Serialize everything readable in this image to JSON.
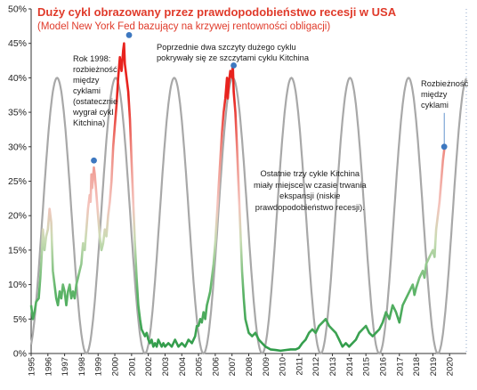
{
  "chart_data": {
    "type": "line",
    "title": "Duży cykl obrazowany przez prawdopodobieństwo recesji w USA",
    "subtitle": "(Model New York Fed bazujący na krzywej rentowności obligacji)",
    "xlabel": "",
    "ylabel": "",
    "xlim": [
      1995,
      2021
    ],
    "ylim": [
      0,
      50
    ],
    "y_tick_labels": [
      "0%",
      "5%",
      "10%",
      "15%",
      "20%",
      "25%",
      "30%",
      "35%",
      "40%",
      "45%",
      "50%"
    ],
    "x_tick_labels": [
      "1995",
      "1996",
      "1997",
      "1998",
      "1999",
      "2000",
      "2001",
      "2002",
      "2003",
      "2004",
      "2005",
      "2006",
      "2007",
      "2008",
      "2009",
      "2010",
      "2011",
      "2012",
      "2013",
      "2014",
      "2015",
      "2016",
      "2017",
      "2018",
      "2019",
      "2020"
    ],
    "grid": false,
    "colors": {
      "high": "#e8231e",
      "mid": "#f2a7a1",
      "low": "#2d9a48",
      "cycle": "#a8a8a8",
      "marker": "#3d78c0"
    },
    "series": [
      {
        "role": "recession-probability",
        "points": [
          [
            1995.0,
            7
          ],
          [
            1995.1,
            5
          ],
          [
            1995.2,
            6
          ],
          [
            1995.3,
            7.5
          ],
          [
            1995.45,
            8
          ],
          [
            1995.55,
            11
          ],
          [
            1995.65,
            15
          ],
          [
            1995.7,
            18
          ],
          [
            1995.8,
            15
          ],
          [
            1995.9,
            17
          ],
          [
            1996.0,
            18
          ],
          [
            1996.1,
            21
          ],
          [
            1996.2,
            19
          ],
          [
            1996.3,
            12
          ],
          [
            1996.4,
            10
          ],
          [
            1996.5,
            8
          ],
          [
            1996.6,
            7
          ],
          [
            1996.7,
            9
          ],
          [
            1996.8,
            8
          ],
          [
            1996.9,
            10
          ],
          [
            1997.0,
            9
          ],
          [
            1997.1,
            7
          ],
          [
            1997.2,
            9
          ],
          [
            1997.3,
            10
          ],
          [
            1997.4,
            8
          ],
          [
            1997.5,
            9
          ],
          [
            1997.6,
            8
          ],
          [
            1997.7,
            10
          ],
          [
            1997.8,
            11
          ],
          [
            1997.9,
            12
          ],
          [
            1998.0,
            13
          ],
          [
            1998.1,
            16
          ],
          [
            1998.2,
            15
          ],
          [
            1998.3,
            18
          ],
          [
            1998.4,
            21
          ],
          [
            1998.5,
            23
          ],
          [
            1998.55,
            22
          ],
          [
            1998.6,
            26
          ],
          [
            1998.65,
            24
          ],
          [
            1998.75,
            27
          ],
          [
            1998.8,
            26
          ],
          [
            1998.9,
            23
          ],
          [
            1999.0,
            20
          ],
          [
            1999.1,
            17
          ],
          [
            1999.2,
            15
          ],
          [
            1999.3,
            16
          ],
          [
            1999.4,
            18
          ],
          [
            1999.5,
            17
          ],
          [
            1999.6,
            20
          ],
          [
            1999.7,
            22
          ],
          [
            1999.8,
            25
          ],
          [
            1999.9,
            30
          ],
          [
            2000.0,
            33
          ],
          [
            2000.1,
            36
          ],
          [
            2000.2,
            40
          ],
          [
            2000.3,
            43
          ],
          [
            2000.4,
            41
          ],
          [
            2000.5,
            44
          ],
          [
            2000.55,
            45
          ],
          [
            2000.6,
            42
          ],
          [
            2000.7,
            40
          ],
          [
            2000.8,
            38
          ],
          [
            2000.9,
            34
          ],
          [
            2001.0,
            28
          ],
          [
            2001.1,
            22
          ],
          [
            2001.2,
            16
          ],
          [
            2001.3,
            11
          ],
          [
            2001.4,
            7
          ],
          [
            2001.5,
            5
          ],
          [
            2001.6,
            3.5
          ],
          [
            2001.7,
            3
          ],
          [
            2001.8,
            2.5
          ],
          [
            2001.9,
            3
          ],
          [
            2002.0,
            2
          ],
          [
            2002.1,
            1.5
          ],
          [
            2002.2,
            2
          ],
          [
            2002.3,
            1
          ],
          [
            2002.4,
            1.5
          ],
          [
            2002.5,
            1
          ],
          [
            2002.6,
            2
          ],
          [
            2002.7,
            1.5
          ],
          [
            2002.8,
            1
          ],
          [
            2002.9,
            1.5
          ],
          [
            2003.0,
            1
          ],
          [
            2003.2,
            1.5
          ],
          [
            2003.4,
            1
          ],
          [
            2003.6,
            2
          ],
          [
            2003.8,
            1
          ],
          [
            2004.0,
            1.5
          ],
          [
            2004.2,
            1
          ],
          [
            2004.4,
            2
          ],
          [
            2004.6,
            1.5
          ],
          [
            2004.8,
            2.5
          ],
          [
            2004.9,
            4
          ],
          [
            2005.0,
            4
          ],
          [
            2005.1,
            5
          ],
          [
            2005.2,
            4.5
          ],
          [
            2005.3,
            6
          ],
          [
            2005.4,
            5
          ],
          [
            2005.5,
            7
          ],
          [
            2005.6,
            8
          ],
          [
            2005.7,
            9
          ],
          [
            2005.8,
            11
          ],
          [
            2005.9,
            13
          ],
          [
            2006.0,
            16
          ],
          [
            2006.1,
            20
          ],
          [
            2006.2,
            24
          ],
          [
            2006.3,
            28
          ],
          [
            2006.4,
            32
          ],
          [
            2006.5,
            35
          ],
          [
            2006.6,
            37
          ],
          [
            2006.7,
            40
          ],
          [
            2006.75,
            37
          ],
          [
            2006.8,
            39
          ],
          [
            2006.9,
            41
          ],
          [
            2007.0,
            40
          ],
          [
            2007.05,
            42
          ],
          [
            2007.1,
            38
          ],
          [
            2007.2,
            35
          ],
          [
            2007.3,
            30
          ],
          [
            2007.4,
            24
          ],
          [
            2007.5,
            18
          ],
          [
            2007.6,
            12
          ],
          [
            2007.7,
            8
          ],
          [
            2007.8,
            5
          ],
          [
            2007.9,
            4
          ],
          [
            2008.0,
            3
          ],
          [
            2008.2,
            2.5
          ],
          [
            2008.4,
            3
          ],
          [
            2008.6,
            2
          ],
          [
            2008.8,
            1.5
          ],
          [
            2009.0,
            1
          ],
          [
            2009.3,
            0.6
          ],
          [
            2009.6,
            0.5
          ],
          [
            2009.9,
            0.4
          ],
          [
            2010.2,
            0.5
          ],
          [
            2010.5,
            0.6
          ],
          [
            2010.8,
            0.6
          ],
          [
            2011.0,
            0.8
          ],
          [
            2011.2,
            1.5
          ],
          [
            2011.4,
            2
          ],
          [
            2011.6,
            3
          ],
          [
            2011.8,
            3.5
          ],
          [
            2012.0,
            3
          ],
          [
            2012.2,
            4
          ],
          [
            2012.4,
            4.5
          ],
          [
            2012.6,
            5
          ],
          [
            2012.8,
            4
          ],
          [
            2013.0,
            3.5
          ],
          [
            2013.2,
            3
          ],
          [
            2013.4,
            2
          ],
          [
            2013.6,
            1
          ],
          [
            2013.8,
            1.5
          ],
          [
            2014.0,
            1
          ],
          [
            2014.2,
            1.5
          ],
          [
            2014.4,
            2
          ],
          [
            2014.6,
            3
          ],
          [
            2014.8,
            3.5
          ],
          [
            2015.0,
            4
          ],
          [
            2015.2,
            3
          ],
          [
            2015.4,
            2.5
          ],
          [
            2015.6,
            3
          ],
          [
            2015.8,
            3.5
          ],
          [
            2016.0,
            4.5
          ],
          [
            2016.2,
            6
          ],
          [
            2016.4,
            5
          ],
          [
            2016.6,
            7
          ],
          [
            2016.8,
            6
          ],
          [
            2017.0,
            4.5
          ],
          [
            2017.2,
            7
          ],
          [
            2017.4,
            8
          ],
          [
            2017.6,
            9
          ],
          [
            2017.8,
            10
          ],
          [
            2017.9,
            8.5
          ],
          [
            2018.0,
            9.5
          ],
          [
            2018.2,
            11
          ],
          [
            2018.4,
            12
          ],
          [
            2018.5,
            11
          ],
          [
            2018.6,
            13
          ],
          [
            2018.8,
            14
          ],
          [
            2019.0,
            15
          ],
          [
            2019.1,
            14
          ],
          [
            2019.2,
            18
          ],
          [
            2019.4,
            22
          ],
          [
            2019.5,
            25
          ],
          [
            2019.6,
            28
          ],
          [
            2019.7,
            30
          ]
        ]
      },
      {
        "role": "kitchin-cycle",
        "period_years": 3.5,
        "peak_year": 1996.55,
        "range": [
          0,
          40
        ]
      }
    ],
    "highlight_points": [
      [
        1998.75,
        28
      ],
      [
        2000.85,
        46.2
      ],
      [
        2007.1,
        41.8
      ],
      [
        2019.68,
        30
      ]
    ],
    "annotations": [
      "Rok 1998:\nrozbieżność\nmiędzy\ncyklami\n(ostatecznie\nwygrał cykl\nKitchina)",
      "Poprzednie dwa szczyty dużego cyklu\npokrywały się ze szczytami cyklu Kitchina",
      "Rozbieżność\nmiędzy\ncyklami",
      "Ostatnie trzy cykle Kitchina\nmiały miejsce w czasie trwania\nekspansji (niskie\nprawdopodobieństwo recesji)."
    ]
  }
}
